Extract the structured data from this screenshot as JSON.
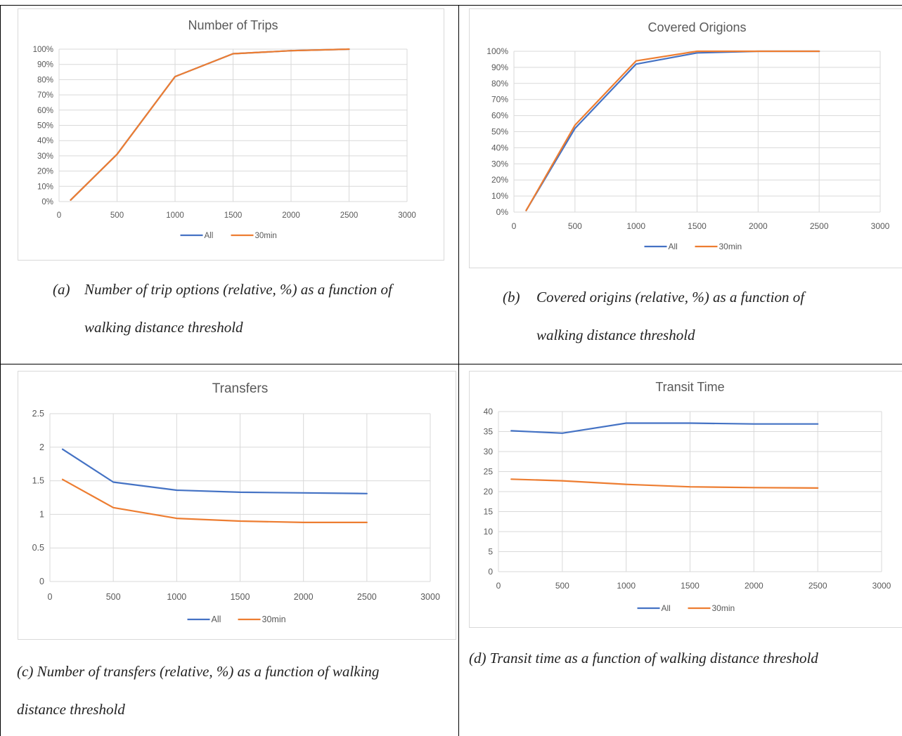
{
  "colors": {
    "all": "#4472c4",
    "min30": "#ed7d31",
    "grid": "#d9d9d9",
    "text": "#595959"
  },
  "charts": [
    {
      "id": "a",
      "title": "Number of Trips",
      "caption_label": "(a)",
      "caption_line1": "Number of trip options (relative, %) as a function of",
      "caption_line2": "walking distance threshold",
      "chart_data": {
        "type": "line",
        "title": "Number of Trips",
        "xlabel": "",
        "ylabel": "",
        "xlim": [
          0,
          3000
        ],
        "ylim": [
          0,
          100
        ],
        "y_format": "percent",
        "x_ticks": [
          0,
          500,
          1000,
          1500,
          2000,
          2500,
          3000
        ],
        "y_ticks": [
          0,
          10,
          20,
          30,
          40,
          50,
          60,
          70,
          80,
          90,
          100
        ],
        "legend": "bottom",
        "series": [
          {
            "name": "All",
            "x": [
              100,
              500,
              1000,
              1500,
              2000,
              2500
            ],
            "y": [
              1,
              31,
              82,
              97,
              99,
              100
            ]
          },
          {
            "name": "30min",
            "x": [
              100,
              500,
              1000,
              1500,
              2000,
              2500
            ],
            "y": [
              1,
              31,
              82,
              97,
              99,
              100
            ]
          }
        ]
      }
    },
    {
      "id": "b",
      "title": "Covered Origions",
      "caption_label": "(b)",
      "caption_line1": "Covered origins (relative, %) as a function of",
      "caption_line2": "walking distance threshold",
      "chart_data": {
        "type": "line",
        "title": "Covered Origions",
        "xlabel": "",
        "ylabel": "",
        "xlim": [
          0,
          3000
        ],
        "ylim": [
          0,
          100
        ],
        "y_format": "percent",
        "x_ticks": [
          0,
          500,
          1000,
          1500,
          2000,
          2500,
          3000
        ],
        "y_ticks": [
          0,
          10,
          20,
          30,
          40,
          50,
          60,
          70,
          80,
          90,
          100
        ],
        "legend": "bottom",
        "series": [
          {
            "name": "All",
            "x": [
              100,
              500,
              1000,
              1500,
              2000,
              2500
            ],
            "y": [
              1,
              52,
              92,
              99,
              100,
              100
            ]
          },
          {
            "name": "30min",
            "x": [
              100,
              500,
              1000,
              1500,
              2000,
              2500
            ],
            "y": [
              1,
              54,
              94,
              100,
              100,
              100
            ]
          }
        ]
      }
    },
    {
      "id": "c",
      "title": "Transfers",
      "caption_label": "(c)",
      "caption_line1": "Number of transfers (relative, %) as a function of walking",
      "caption_line2": "distance threshold",
      "chart_data": {
        "type": "line",
        "title": "Transfers",
        "xlabel": "",
        "ylabel": "",
        "xlim": [
          0,
          3000
        ],
        "ylim": [
          0,
          2.5
        ],
        "y_format": "number",
        "x_ticks": [
          0,
          500,
          1000,
          1500,
          2000,
          2500,
          3000
        ],
        "y_ticks": [
          0,
          0.5,
          1,
          1.5,
          2,
          2.5
        ],
        "legend": "bottom",
        "series": [
          {
            "name": "All",
            "x": [
              100,
              500,
              1000,
              1500,
              2000,
              2500
            ],
            "y": [
              1.97,
              1.48,
              1.36,
              1.33,
              1.32,
              1.31
            ]
          },
          {
            "name": "30min",
            "x": [
              100,
              500,
              1000,
              1500,
              2000,
              2500
            ],
            "y": [
              1.52,
              1.1,
              0.94,
              0.9,
              0.88,
              0.88
            ]
          }
        ]
      }
    },
    {
      "id": "d",
      "title": "Transit Time",
      "caption_label": "(d)",
      "caption_line1": "Transit time as a function of walking distance threshold",
      "caption_line2": "",
      "chart_data": {
        "type": "line",
        "title": "Transit Time",
        "xlabel": "",
        "ylabel": "",
        "xlim": [
          0,
          3000
        ],
        "ylim": [
          0,
          40
        ],
        "y_format": "number",
        "x_ticks": [
          0,
          500,
          1000,
          1500,
          2000,
          2500,
          3000
        ],
        "y_ticks": [
          0,
          5,
          10,
          15,
          20,
          25,
          30,
          35,
          40
        ],
        "legend": "bottom",
        "series": [
          {
            "name": "All",
            "x": [
              100,
              500,
              1000,
              1500,
              2000,
              2500
            ],
            "y": [
              35.2,
              34.6,
              37.1,
              37.1,
              36.9,
              36.9
            ]
          },
          {
            "name": "30min",
            "x": [
              100,
              500,
              1000,
              1500,
              2000,
              2500
            ],
            "y": [
              23.1,
              22.7,
              21.8,
              21.2,
              21.0,
              20.9
            ]
          }
        ]
      }
    }
  ]
}
